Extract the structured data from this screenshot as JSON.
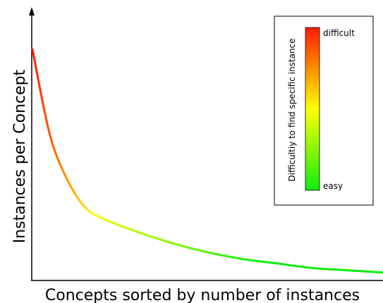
{
  "chart_data": {
    "type": "line",
    "xlabel": "Concepts sorted by number of instances",
    "ylabel": "Instances per Concept",
    "x_ticks_shown": false,
    "y_ticks_shown": false,
    "grid": false,
    "curve_shape": "long-tail decay",
    "x": [
      0,
      0.05,
      0.1,
      0.15,
      0.2,
      0.3,
      0.4,
      0.5,
      0.6,
      0.7,
      0.8,
      0.9,
      1.0
    ],
    "y": [
      1.0,
      0.62,
      0.42,
      0.3,
      0.25,
      0.19,
      0.14,
      0.1,
      0.07,
      0.05,
      0.03,
      0.02,
      0.01
    ],
    "color_scale": {
      "title": "Difficultiy to find specific instance",
      "high_label": "difficult",
      "low_label": "easy",
      "high_color": "#ff1a00",
      "mid_color": "#ffff00",
      "low_color": "#11ee11",
      "placement": "top-right"
    }
  }
}
